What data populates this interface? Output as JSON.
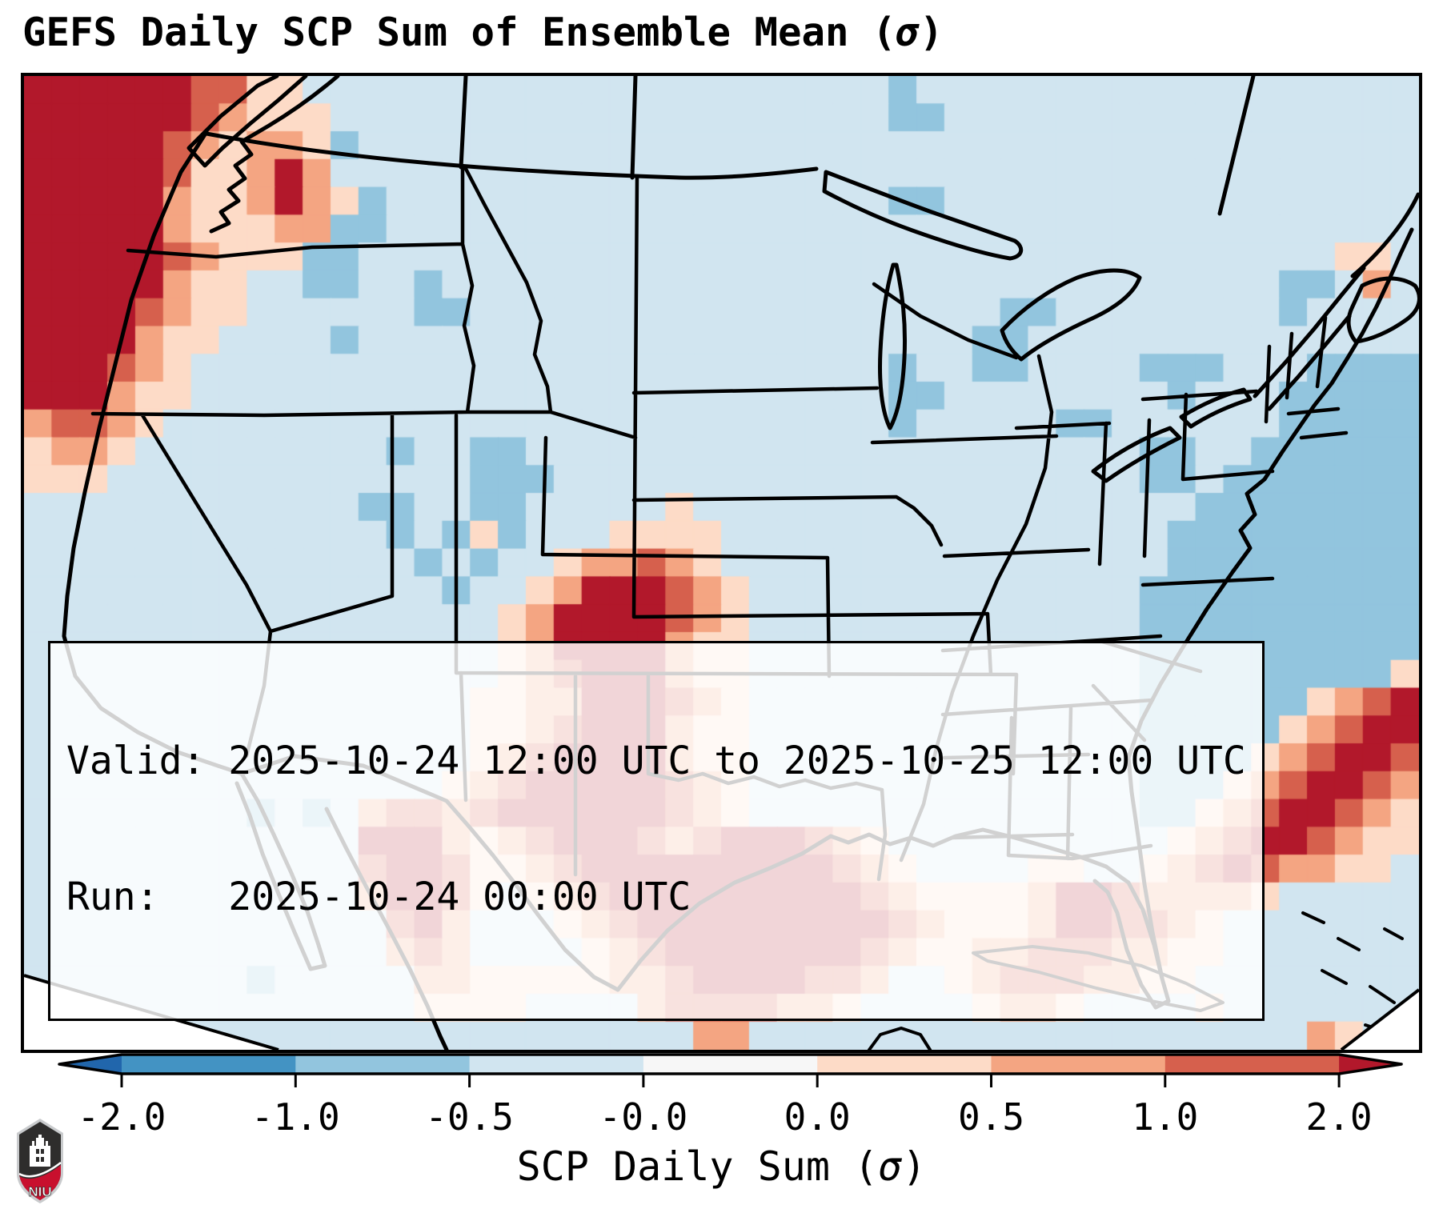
{
  "title": {
    "prefix": "GEFS Daily SCP Sum of Ensemble Mean (",
    "sigma": "σ",
    "suffix": ")"
  },
  "info_box": {
    "line1": "Valid: 2025-10-24 12:00 UTC to 2025-10-25 12:00 UTC",
    "line2": "Run:   2025-10-24 00:00 UTC"
  },
  "colorbar": {
    "label_prefix": "SCP Daily Sum (",
    "label_sigma": "σ",
    "label_suffix": ")",
    "ticks": [
      "-2.0",
      "-1.0",
      "-0.5",
      "-0.0",
      "0.0",
      "0.5",
      "1.0",
      "2.0"
    ],
    "under_color": "#2166ac",
    "over_color": "#b2182b",
    "segment_colors": [
      "#4393c3",
      "#92c5de",
      "#d1e5f0",
      "#f7f7f7",
      "#fddbc7",
      "#f4a582",
      "#d6604d"
    ]
  },
  "logo": {
    "text": "NIU",
    "shield_dark": "#2e2d2c",
    "shield_red": "#c8102e",
    "shield_border": "#c9cbcd"
  },
  "chart_data": {
    "type": "heatmap",
    "title": "GEFS Daily SCP Sum of Ensemble Mean (σ)",
    "colorbar_ticks": [
      -2.0,
      -1.0,
      -0.5,
      -0.0,
      0.0,
      0.5,
      1.0,
      2.0
    ],
    "units": "SCP Daily Sum (σ)",
    "legend_position": "bottom"
  },
  "map": {
    "background": "#d1e5f0",
    "palette": {
      ".": "#d1e5f0",
      "b": "#92c5de",
      "B": "#4393c3",
      "w": "#f7f7f7",
      "1": "#fddbc7",
      "2": "#f4a582",
      "3": "#d6604d",
      "4": "#b2182b"
    },
    "grid": [
      "4444443311.....................b..................",
      "44444432111....................bb.................",
      "44444321221b......................................",
      "44444311242.......................................",
      "444442112421b..................bb.................",
      "44444211122bb.....................................",
      "4444432111bb...................................11.",
      "44444211..bb..b..............................bb.2.",
      "44443211......bb...................bb........b....",
      "4444211....b......................bb..............",
      "444321.........................b..bb....bbb...bbbb",
      "444211.........................bb........b...bbbbb",
      "23321..........................b.....bb......bbbbb",
      "1221.........b..bb......................bb..bbbbbb",
      "111.............bbb.....................bb.bbbbbbb",
      "............bb..bb.....1..................bbbbbbbb",
      ".............b.b1b...1111................bbbbbbbbb",
      "..............b.b..122321................bbbbbbbbb",
      "...............b..12444321..............bbbbbbbbbb",
      ".................124444321..............bbbbbbbbbb",
      ".................124444211..............bbbbbbbbbb",
      ".................123444211..............bbbbbbbbb1",
      "................1122444321..............bbbbbb1234",
      "................1123444211..............bbbbb12344",
      "................1234444211..............bbbb123443",
      "...............12344444321..............bbb1234432",
      "........b.b.23323444444321..............bb12344321",
      "............4442123444323444321..........123443211",
      "............34431123444444444321....11..123432211.",
      "............24431.123444444444321111244322221.....",
      ".............342...123444444444321112443321.......",
      ".............232....12344444443211223332211.......",
      "........b.....22111112234444332..123332211........",
      "..............1111....23333221....1221....1.......",
      "........................22....................21.."
    ]
  }
}
